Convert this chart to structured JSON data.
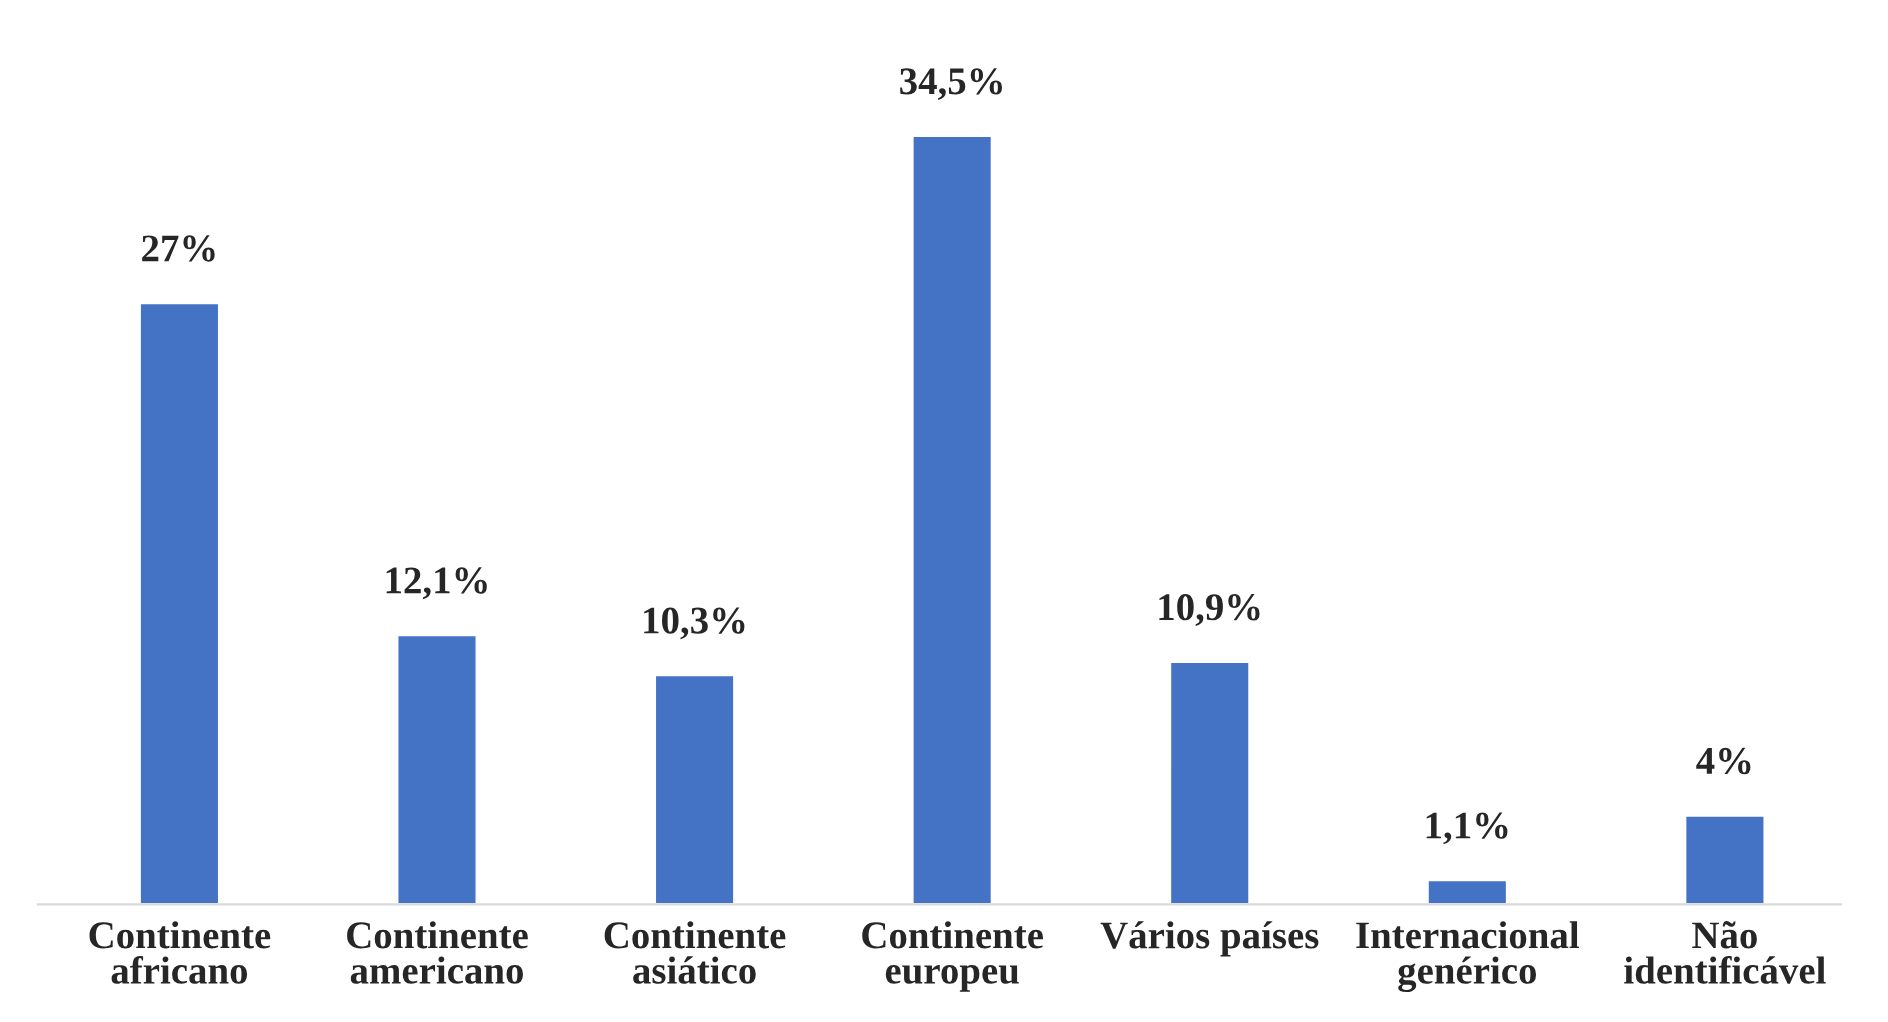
{
  "chart_data": {
    "type": "bar",
    "categories": [
      "Continente\nafricano",
      "Continente\namericano",
      "Continente\nasiático",
      "Continente\neuropeu",
      "Vários países",
      "Internacional\ngenérico",
      "Não\nidentificável"
    ],
    "values": [
      27,
      12.1,
      10.3,
      34.5,
      10.9,
      1.1,
      4
    ],
    "value_labels": [
      "27%",
      "12,1%",
      "10,3%",
      "34,5%",
      "10,9%",
      "1,1%",
      "4%"
    ],
    "color": "#4472c4"
  }
}
